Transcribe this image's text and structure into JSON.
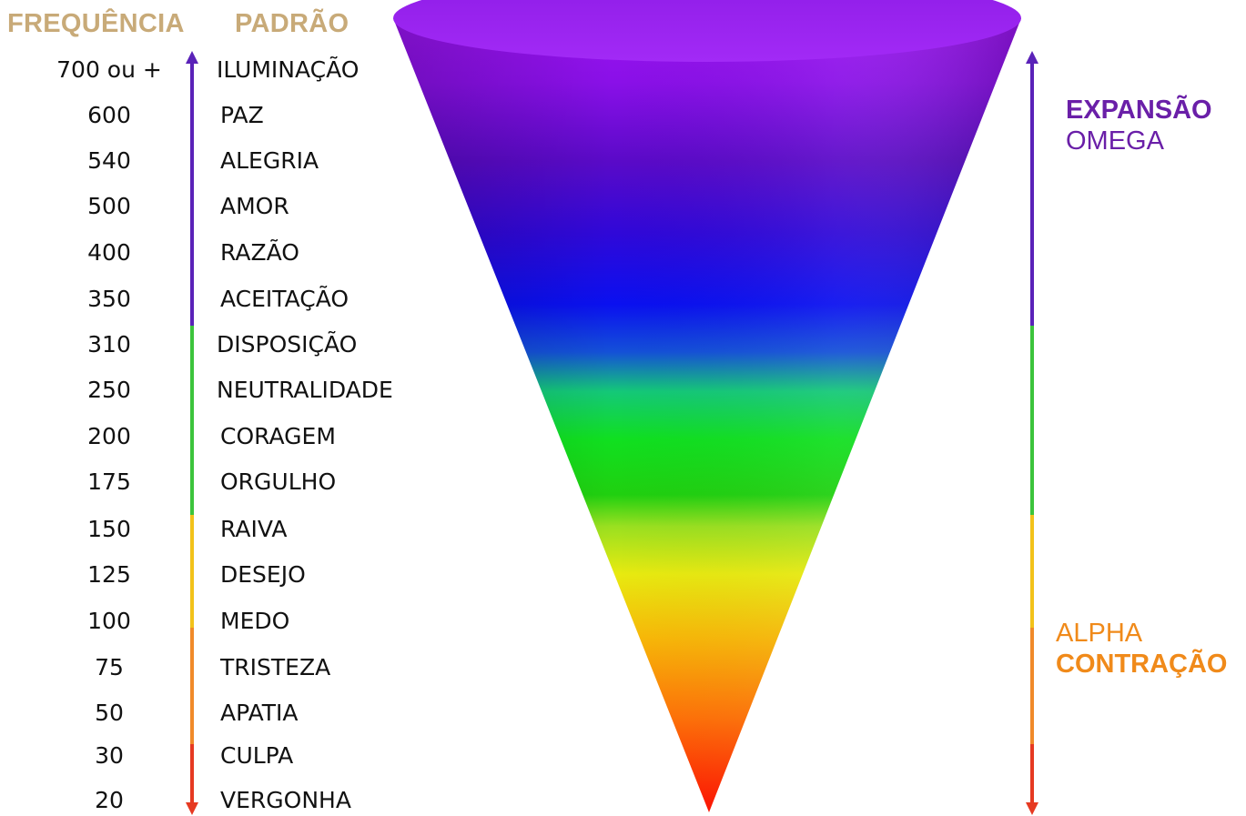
{
  "headers": {
    "frequency": "FREQUÊNCIA",
    "pattern": "PADRÃO"
  },
  "levels": [
    {
      "frequency": "700 ou +",
      "pattern": "ILUMINAÇÃO"
    },
    {
      "frequency": "600",
      "pattern": "PAZ"
    },
    {
      "frequency": "540",
      "pattern": "ALEGRIA"
    },
    {
      "frequency": "500",
      "pattern": "AMOR"
    },
    {
      "frequency": "400",
      "pattern": "RAZÃO"
    },
    {
      "frequency": "350",
      "pattern": "ACEITAÇÃO"
    },
    {
      "frequency": "310",
      "pattern": "DISPOSIÇÃO"
    },
    {
      "frequency": "250",
      "pattern": "NEUTRALIDADE"
    },
    {
      "frequency": "200",
      "pattern": "CORAGEM"
    },
    {
      "frequency": "175",
      "pattern": "ORGULHO"
    },
    {
      "frequency": "150",
      "pattern": "RAIVA"
    },
    {
      "frequency": "125",
      "pattern": "DESEJO"
    },
    {
      "frequency": "100",
      "pattern": "MEDO"
    },
    {
      "frequency": "75",
      "pattern": "TRISTEZA"
    },
    {
      "frequency": "50",
      "pattern": "APATIA"
    },
    {
      "frequency": "30",
      "pattern": "CULPA"
    },
    {
      "frequency": "20",
      "pattern": "VERGONHA"
    }
  ],
  "top_label": {
    "bold": "EXPANSÃO",
    "regular": "OMEGA",
    "color": "#6a1fa8"
  },
  "bottom_label": {
    "regular": "ALPHA",
    "bold": "CONTRAÇÃO",
    "color": "#f08a1a"
  },
  "colors": {
    "header": "#c8aa78",
    "axis_purple": "#5a22b8",
    "axis_green": "#3cc43c",
    "axis_yellow": "#f2c21a",
    "axis_orange": "#f08a2a",
    "axis_red": "#e63a22"
  }
}
